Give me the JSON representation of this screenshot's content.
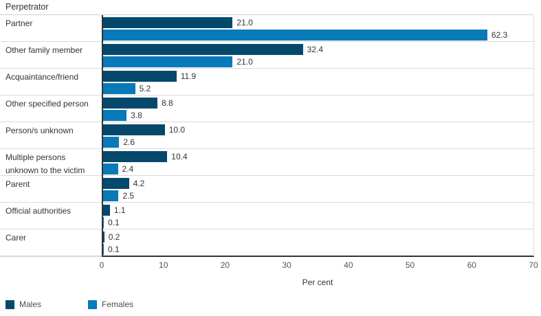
{
  "chart_data": {
    "type": "bar",
    "orientation": "horizontal",
    "row_axis_title": "Perpetrator",
    "categories": [
      "Partner",
      "Other family member",
      "Acquaintance/friend",
      "Other specified person",
      "Person/s unknown",
      "Multiple persons unknown to the victim",
      "Parent",
      "Official authorities",
      "Carer"
    ],
    "series": [
      {
        "name": "Males",
        "color": "#04496B",
        "values": [
          21.0,
          32.4,
          11.9,
          8.8,
          10.0,
          10.4,
          4.2,
          1.1,
          0.2
        ]
      },
      {
        "name": "Females",
        "color": "#087AB9",
        "values": [
          62.3,
          21.0,
          5.2,
          3.8,
          2.6,
          2.4,
          2.5,
          0.1,
          0.1
        ]
      }
    ],
    "xlabel": "Per cent",
    "xlim": [
      0,
      70
    ],
    "x_ticks": [
      "0",
      "10",
      "20",
      "30",
      "40",
      "50",
      "60",
      "70"
    ],
    "value_label_decimals": 1,
    "grid": "horizontal row dividers only, no vertical gridlines",
    "legend_position": "bottom-left",
    "style_colors": {
      "axis_line": "#333333",
      "row_divider": "#d9d9d9",
      "text": "#333333",
      "tick_text": "#555555",
      "legend_text": "#4d4d4d"
    }
  }
}
